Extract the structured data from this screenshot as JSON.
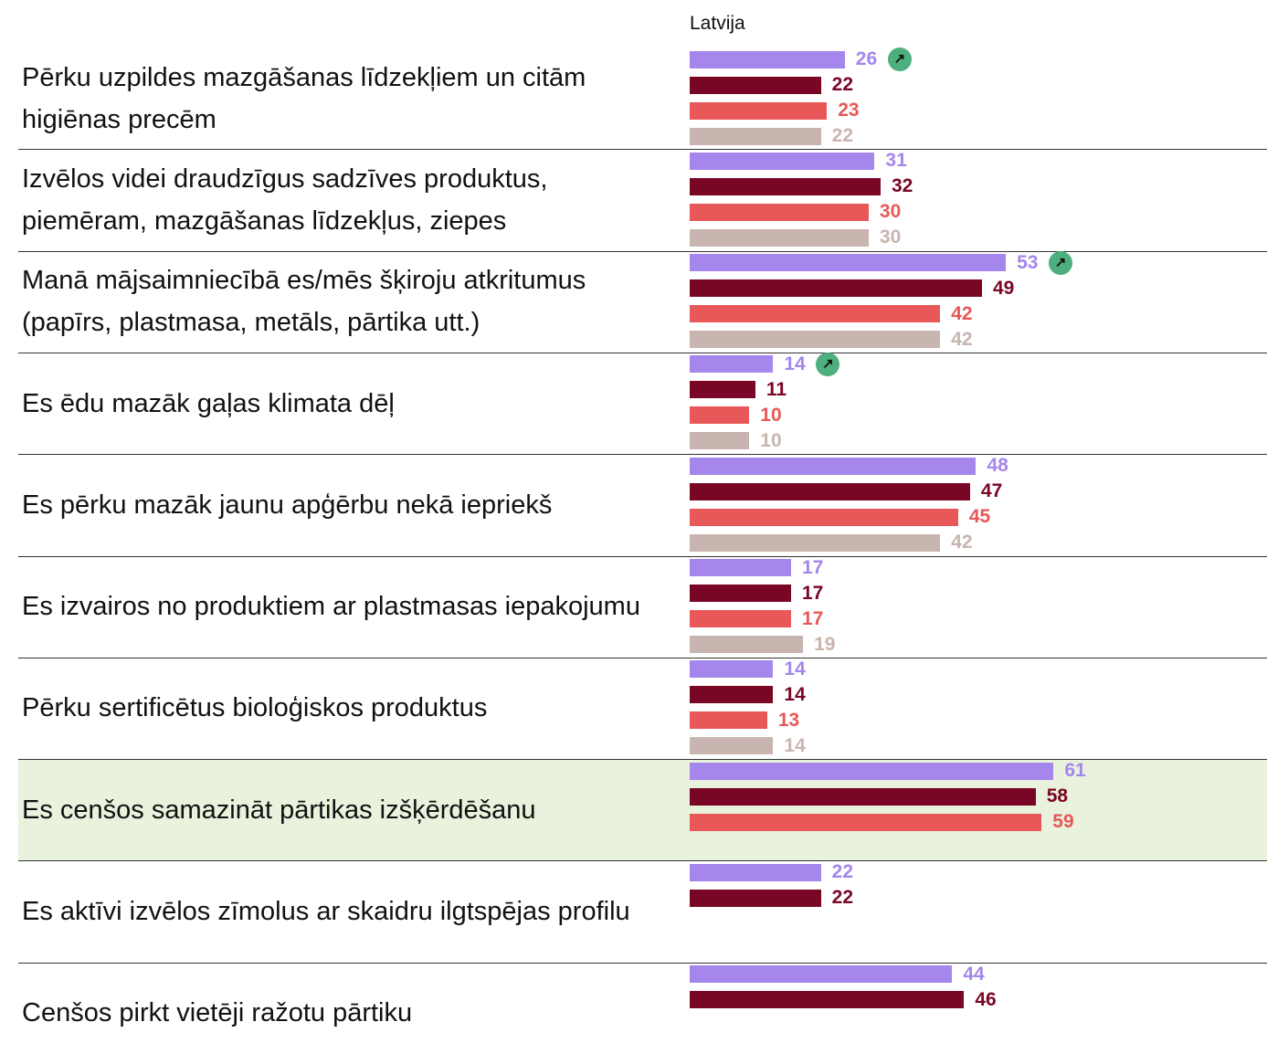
{
  "chart_data": {
    "type": "grouped-bar-horizontal",
    "column_title": "Latvija",
    "categories": [
      "Pērku uzpildes mazgāšanas līdzekļiem un citām higiēnas precēm",
      "Izvēlos videi draudzīgus sadzīves produktus, piemēram, mazgāšanas līdzekļus, ziepes",
      "Manā mājsaimniecībā es/mēs šķiroju atkritumus (papīrs, plastmasa, metāls, pārtika utt.)",
      "Es ēdu mazāk gaļas klimata dēļ",
      "Es pērku mazāk jaunu apģērbu nekā iepriekš",
      "Es izvairos no produktiem ar plastmasas iepakojumu",
      "Pērku sertificētus bioloģiskos produktus",
      "Es cenšos samazināt pārtikas izšķērdēšanu",
      "Es aktīvi izvēlos zīmolus ar skaidru ilgtspējas profilu",
      "Cenšos pirkt vietēji ražotu pārtiku"
    ],
    "series": [
      {
        "color": "#a486ec",
        "values": [
          26,
          31,
          53,
          14,
          48,
          17,
          14,
          61,
          22,
          44
        ]
      },
      {
        "color": "#7a0626",
        "values": [
          22,
          32,
          49,
          11,
          47,
          17,
          14,
          58,
          22,
          46
        ]
      },
      {
        "color": "#e85858",
        "values": [
          23,
          30,
          42,
          10,
          45,
          17,
          13,
          59,
          null,
          null
        ]
      },
      {
        "color": "#c8b5b0",
        "values": [
          22,
          30,
          42,
          10,
          42,
          19,
          14,
          null,
          null,
          null
        ]
      }
    ],
    "trend_up": [
      true,
      false,
      true,
      true,
      false,
      false,
      false,
      false,
      false,
      false
    ],
    "trend_color": "#4caf7d",
    "highlighted_rows": [
      7
    ],
    "highlight_color": "#e9f2dc"
  }
}
